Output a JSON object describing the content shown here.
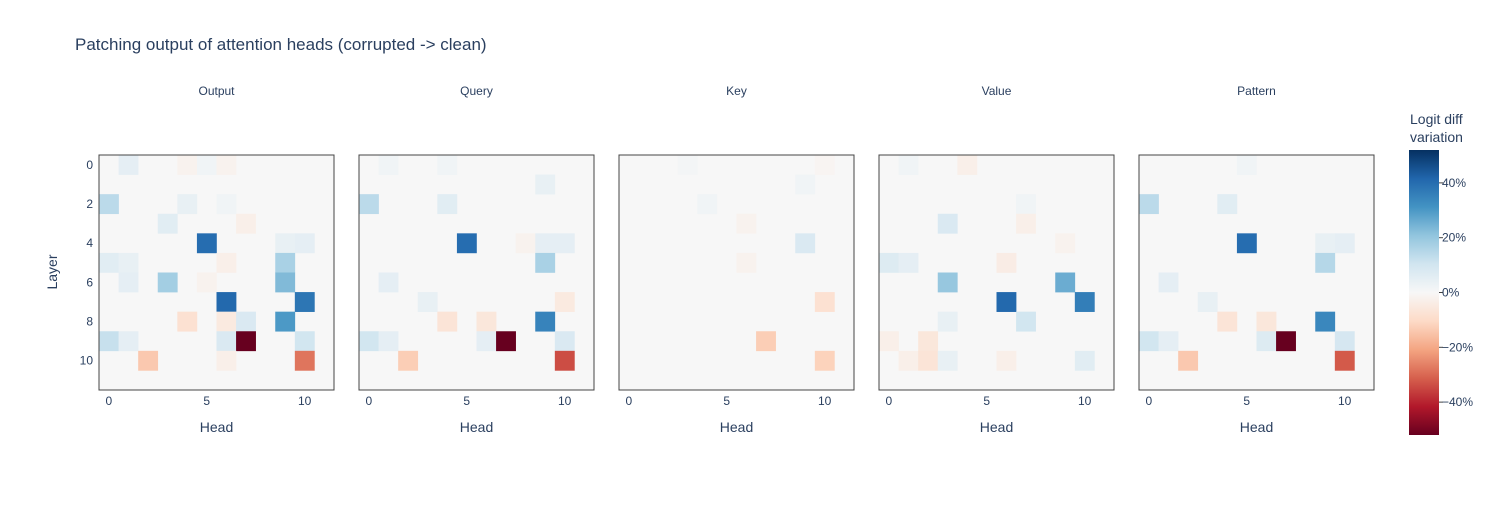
{
  "chart_data": {
    "type": "heatmap",
    "title": "Patching output of attention heads (corrupted -> clean)",
    "xlabel": "Head",
    "ylabel": "Layer",
    "n_heads": 12,
    "n_layers": 12,
    "x_ticks": [
      0,
      5,
      10
    ],
    "y_ticks": [
      0,
      2,
      4,
      6,
      8,
      10
    ],
    "zrange": [
      -52,
      52
    ],
    "colorscale": "RdBu",
    "colorbar": {
      "title_lines": [
        "Logit diff",
        "variation"
      ],
      "ticks": [
        40,
        20,
        0,
        -20,
        -40
      ],
      "tick_labels": [
        "40%",
        "20%",
        "0%",
        "−20%",
        "−40%"
      ]
    },
    "panels": [
      {
        "name": "Output",
        "cells": [
          [
            0,
            1,
            5
          ],
          [
            0,
            4,
            -2
          ],
          [
            0,
            5,
            2
          ],
          [
            0,
            6,
            -2
          ],
          [
            2,
            0,
            14
          ],
          [
            2,
            4,
            4
          ],
          [
            2,
            6,
            2
          ],
          [
            3,
            3,
            6
          ],
          [
            3,
            7,
            -3
          ],
          [
            4,
            5,
            40
          ],
          [
            4,
            9,
            4
          ],
          [
            4,
            10,
            5
          ],
          [
            5,
            0,
            6
          ],
          [
            5,
            1,
            4
          ],
          [
            5,
            6,
            -3
          ],
          [
            5,
            9,
            17
          ],
          [
            6,
            1,
            5
          ],
          [
            6,
            3,
            18
          ],
          [
            6,
            5,
            -2
          ],
          [
            6,
            9,
            23
          ],
          [
            7,
            6,
            41
          ],
          [
            7,
            10,
            38
          ],
          [
            8,
            4,
            -8
          ],
          [
            8,
            6,
            -5
          ],
          [
            8,
            7,
            8
          ],
          [
            8,
            9,
            30
          ],
          [
            9,
            0,
            12
          ],
          [
            9,
            1,
            5
          ],
          [
            9,
            6,
            8
          ],
          [
            9,
            7,
            -52
          ],
          [
            9,
            10,
            10
          ],
          [
            10,
            2,
            -14
          ],
          [
            10,
            6,
            -3
          ],
          [
            10,
            10,
            -28
          ]
        ]
      },
      {
        "name": "Query",
        "cells": [
          [
            0,
            1,
            2
          ],
          [
            0,
            4,
            2
          ],
          [
            1,
            9,
            4
          ],
          [
            2,
            0,
            14
          ],
          [
            2,
            4,
            6
          ],
          [
            4,
            5,
            40
          ],
          [
            4,
            8,
            -2
          ],
          [
            4,
            9,
            5
          ],
          [
            4,
            10,
            5
          ],
          [
            5,
            9,
            17
          ],
          [
            6,
            1,
            5
          ],
          [
            7,
            3,
            4
          ],
          [
            7,
            10,
            -5
          ],
          [
            8,
            4,
            -7
          ],
          [
            8,
            6,
            -6
          ],
          [
            8,
            9,
            35
          ],
          [
            9,
            0,
            10
          ],
          [
            9,
            1,
            5
          ],
          [
            9,
            6,
            5
          ],
          [
            9,
            7,
            -52
          ],
          [
            9,
            10,
            8
          ],
          [
            10,
            2,
            -13
          ],
          [
            10,
            10,
            -34
          ]
        ]
      },
      {
        "name": "Key",
        "cells": [
          [
            0,
            3,
            1
          ],
          [
            0,
            10,
            -1
          ],
          [
            1,
            9,
            2
          ],
          [
            2,
            4,
            2
          ],
          [
            3,
            6,
            -2
          ],
          [
            4,
            9,
            8
          ],
          [
            5,
            6,
            -2
          ],
          [
            7,
            10,
            -8
          ],
          [
            9,
            7,
            -13
          ],
          [
            10,
            10,
            -12
          ]
        ]
      },
      {
        "name": "Value",
        "cells": [
          [
            0,
            1,
            2
          ],
          [
            0,
            4,
            -3
          ],
          [
            2,
            7,
            2
          ],
          [
            3,
            3,
            8
          ],
          [
            3,
            7,
            -3
          ],
          [
            4,
            9,
            -2
          ],
          [
            5,
            0,
            7
          ],
          [
            5,
            1,
            5
          ],
          [
            5,
            6,
            -4
          ],
          [
            6,
            3,
            20
          ],
          [
            6,
            9,
            26
          ],
          [
            7,
            6,
            41
          ],
          [
            7,
            10,
            36
          ],
          [
            8,
            3,
            4
          ],
          [
            8,
            7,
            10
          ],
          [
            9,
            0,
            -3
          ],
          [
            9,
            2,
            -6
          ],
          [
            10,
            1,
            -3
          ],
          [
            10,
            2,
            -7
          ],
          [
            10,
            3,
            4
          ],
          [
            10,
            6,
            -3
          ],
          [
            10,
            10,
            6
          ]
        ]
      },
      {
        "name": "Pattern",
        "cells": [
          [
            0,
            5,
            2
          ],
          [
            2,
            0,
            14
          ],
          [
            2,
            4,
            6
          ],
          [
            4,
            5,
            40
          ],
          [
            4,
            9,
            4
          ],
          [
            4,
            10,
            5
          ],
          [
            5,
            9,
            15
          ],
          [
            6,
            1,
            5
          ],
          [
            7,
            3,
            4
          ],
          [
            8,
            4,
            -7
          ],
          [
            8,
            6,
            -6
          ],
          [
            8,
            9,
            34
          ],
          [
            9,
            0,
            10
          ],
          [
            9,
            1,
            5
          ],
          [
            9,
            6,
            7
          ],
          [
            9,
            7,
            -52
          ],
          [
            9,
            10,
            9
          ],
          [
            10,
            2,
            -14
          ],
          [
            10,
            10,
            -32
          ]
        ]
      }
    ]
  }
}
